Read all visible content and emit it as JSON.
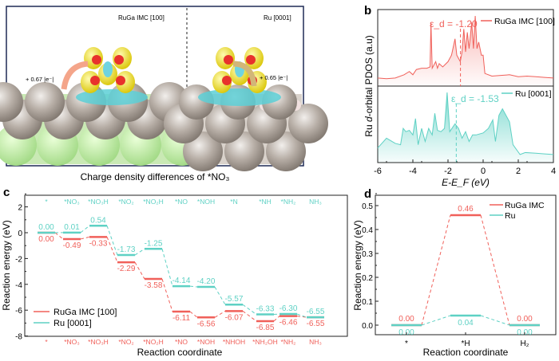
{
  "panel_labels": {
    "a": "a",
    "b": "b",
    "c": "c",
    "d": "d"
  },
  "panel_a": {
    "left_title": "RuGa IMC [100]",
    "right_title": "Ru [0001]",
    "left_charge": "+ 0.67 |e⁻|",
    "right_charge": "+ 0.65 |e⁻|",
    "caption": "Charge density differences of *NO₃"
  },
  "chart_data": [
    {
      "type": "area",
      "ylabel_prefix": "Ru ",
      "ylabel_italic": "d",
      "ylabel_suffix": "-orbital PDOS (a.u)",
      "xlabel": "E-E_F (eV)",
      "xlim": [
        -6,
        4
      ],
      "xticks": [
        "-6",
        "-4",
        "-2",
        "0",
        "2",
        "4"
      ],
      "series": [
        {
          "name": "RuGa IMC [100]",
          "color": "#f0605a",
          "d_band_center": -1.2,
          "d_band_label": "ε_d = -1.20",
          "points": [
            [
              -6,
              0.05
            ],
            [
              -5.5,
              0.04
            ],
            [
              -5,
              0.05
            ],
            [
              -4.5,
              0.1
            ],
            [
              -4.2,
              0.15
            ],
            [
              -4,
              0.1
            ],
            [
              -3.8,
              0.18
            ],
            [
              -3.5,
              0.2
            ],
            [
              -3.2,
              0.2
            ],
            [
              -3.02,
              0.22
            ],
            [
              -2.97,
              0.9
            ],
            [
              -2.9,
              0.2
            ],
            [
              -2.7,
              0.3
            ],
            [
              -2.6,
              0.2
            ],
            [
              -2.5,
              0.27
            ],
            [
              -2.3,
              0.22
            ],
            [
              -2,
              0.3
            ],
            [
              -1.8,
              0.4
            ],
            [
              -1.6,
              0.65
            ],
            [
              -1.5,
              0.4
            ],
            [
              -1.3,
              0.3
            ],
            [
              -1.2,
              0.45
            ],
            [
              -1.1,
              0.8
            ],
            [
              -1.0,
              0.45
            ],
            [
              -0.9,
              0.75
            ],
            [
              -0.8,
              0.5
            ],
            [
              -0.65,
              0.9
            ],
            [
              -0.55,
              0.5
            ],
            [
              -0.45,
              1.0
            ],
            [
              -0.35,
              0.5
            ],
            [
              -0.25,
              0.6
            ],
            [
              -0.1,
              0.4
            ],
            [
              0,
              0.4
            ],
            [
              0.1,
              0.12
            ],
            [
              0.5,
              0.08
            ],
            [
              1,
              0.09
            ],
            [
              1.5,
              0.1
            ],
            [
              2,
              0.07
            ],
            [
              2.5,
              0.08
            ],
            [
              3,
              0.07
            ],
            [
              3.5,
              0.06
            ],
            [
              4,
              0.05
            ]
          ]
        },
        {
          "name": "Ru [0001]",
          "color": "#5ed1c4",
          "d_band_center": -1.53,
          "d_band_label": "ε_d = -1.53",
          "points": [
            [
              -6,
              0.15
            ],
            [
              -5.5,
              0.3
            ],
            [
              -5,
              0.22
            ],
            [
              -4.7,
              0.2
            ],
            [
              -4.55,
              0.45
            ],
            [
              -4.4,
              0.4
            ],
            [
              -4.2,
              0.42
            ],
            [
              -4,
              0.35
            ],
            [
              -3.85,
              0.6
            ],
            [
              -3.7,
              0.2
            ],
            [
              -3.5,
              0.45
            ],
            [
              -3.3,
              0.25
            ],
            [
              -3.1,
              0.45
            ],
            [
              -2.9,
              0.35
            ],
            [
              -2.75,
              0.68
            ],
            [
              -2.6,
              0.42
            ],
            [
              -2.4,
              0.4
            ],
            [
              -2.2,
              0.45
            ],
            [
              -2.05,
              1.0
            ],
            [
              -1.9,
              0.4
            ],
            [
              -1.6,
              0.52
            ],
            [
              -1.4,
              0.45
            ],
            [
              -1.2,
              0.3
            ],
            [
              -1.0,
              0.4
            ],
            [
              -0.8,
              0.25
            ],
            [
              -0.6,
              0.35
            ],
            [
              -0.4,
              0.35
            ],
            [
              0,
              0.38
            ],
            [
              0.3,
              0.45
            ],
            [
              0.55,
              0.58
            ],
            [
              0.7,
              0.25
            ],
            [
              0.9,
              0.65
            ],
            [
              1.1,
              0.75
            ],
            [
              1.5,
              0.55
            ],
            [
              1.7,
              0.2
            ],
            [
              2.1,
              0.05
            ],
            [
              2.4,
              0.08
            ],
            [
              3,
              0.07
            ],
            [
              3.5,
              0.06
            ],
            [
              4,
              0.05
            ]
          ]
        }
      ]
    },
    {
      "type": "energy-profile",
      "ylabel": "Reaction energy (eV)",
      "xlabel": "Reaction coordinate",
      "ylim": [
        -8,
        2.5
      ],
      "yticks": [
        "-8",
        "-6",
        "-4",
        "-2",
        "0",
        "2"
      ],
      "legend": "bottom-left",
      "series": [
        {
          "name": "RuGa IMC [100]",
          "color": "#f0605a",
          "steps": [
            "*",
            "*NO₃",
            "*NO₃H",
            "*NO₂",
            "*NO₂H",
            "*NO",
            "*NOH",
            "*NHOH",
            "*NH₂OH",
            "*NH₂",
            "NH₃"
          ],
          "values": [
            0.0,
            -0.49,
            -0.33,
            -2.29,
            -3.58,
            -6.11,
            -6.56,
            -6.07,
            -6.85,
            -6.46,
            -6.55
          ],
          "labels": [
            "0.00",
            "-0.49",
            "-0.33",
            "-2.29",
            "-3.58",
            "-6.11",
            "-6.56",
            "-6.07",
            "-6.85",
            "-6.46",
            "-6.55"
          ]
        },
        {
          "name": "Ru [0001]",
          "color": "#5ed1c4",
          "steps": [
            "*",
            "*NO₃",
            "*NO₃H",
            "*NO₂",
            "*NO₂H",
            "*NO",
            "*NOH",
            "*N",
            "*NH",
            "*NH₂",
            "NH₃"
          ],
          "values": [
            0.0,
            0.01,
            0.54,
            -1.73,
            -1.25,
            -4.14,
            -4.2,
            -5.57,
            -6.33,
            -6.3,
            -6.55
          ],
          "labels": [
            "0.00",
            "0.01",
            "0.54",
            "-1.73",
            "-1.25",
            "-4.14",
            "-4.20",
            "-5.57",
            "-6.33",
            "-6.30",
            "-6.55"
          ]
        }
      ]
    },
    {
      "type": "energy-profile",
      "ylabel": "Reaction energy (eV)",
      "xlabel": "Reaction coordinate",
      "categories": [
        "*",
        "*H",
        "H₂"
      ],
      "ylim": [
        -0.05,
        0.55
      ],
      "yticks": [
        "0.0",
        "0.1",
        "0.2",
        "0.3",
        "0.4",
        "0.5"
      ],
      "legend": "top-right",
      "series": [
        {
          "name": "RuGa IMC",
          "color": "#f0605a",
          "values": [
            0.0,
            0.46,
            0.0
          ],
          "labels": [
            "0.00",
            "0.46",
            "0.00"
          ]
        },
        {
          "name": "Ru",
          "color": "#5ed1c4",
          "values": [
            0.0,
            0.04,
            0.0
          ],
          "labels": [
            "0.00",
            "0.04",
            "0.00"
          ]
        }
      ]
    }
  ]
}
